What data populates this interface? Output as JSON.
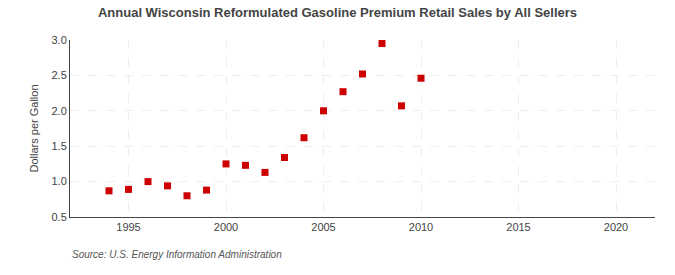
{
  "chart_data": {
    "type": "scatter",
    "title": "Annual Wisconsin Reformulated Gasoline Premium Retail Sales by All Sellers",
    "ylabel": "Dollars per Gallon",
    "annotations": [
      "Source: U.S. Energy Information Administration"
    ],
    "x": [
      1994,
      1995,
      1996,
      1997,
      1998,
      1999,
      2000,
      2001,
      2002,
      2003,
      2004,
      2005,
      2006,
      2007,
      2008,
      2009,
      2010
    ],
    "values": [
      0.87,
      0.89,
      1.0,
      0.94,
      0.8,
      0.88,
      1.25,
      1.23,
      1.13,
      1.34,
      1.62,
      2.0,
      2.27,
      2.52,
      2.95,
      2.07,
      2.46
    ],
    "xlim": [
      1992,
      2022
    ],
    "ylim": [
      0.5,
      3.0
    ],
    "xticks": [
      1995,
      2000,
      2005,
      2010,
      2015,
      2020
    ],
    "yticks": [
      0.5,
      {
        "value": 1,
        "label": "1.0"
      },
      1.5,
      {
        "value": 2,
        "label": "2.0"
      },
      2.5,
      {
        "value": 3,
        "label": "3.0"
      }
    ],
    "color": "#cc0000",
    "marker": "square",
    "grid": true
  }
}
